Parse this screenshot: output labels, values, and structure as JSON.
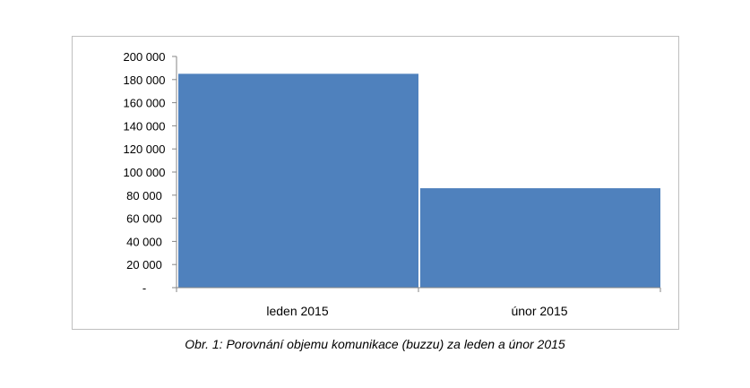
{
  "chart_data": {
    "type": "bar",
    "categories": [
      "leden 2015",
      "únor 2015"
    ],
    "values": [
      185000,
      86000
    ],
    "ylim": [
      0,
      200000
    ],
    "yticks": [
      0,
      20000,
      40000,
      60000,
      80000,
      100000,
      120000,
      140000,
      160000,
      180000,
      200000
    ],
    "ytick_labels": [
      "-",
      "20 000",
      "40 000",
      "60 000",
      "80 000",
      "100 000",
      "120 000",
      "140 000",
      "160 000",
      "180 000",
      "200 000"
    ],
    "grid": false,
    "legend": "none",
    "bar_color": "#4f81bd",
    "axis_color": "#868686"
  },
  "caption": "Obr. 1: Porovnání objemu komunikace (buzzu) za leden a únor 2015"
}
